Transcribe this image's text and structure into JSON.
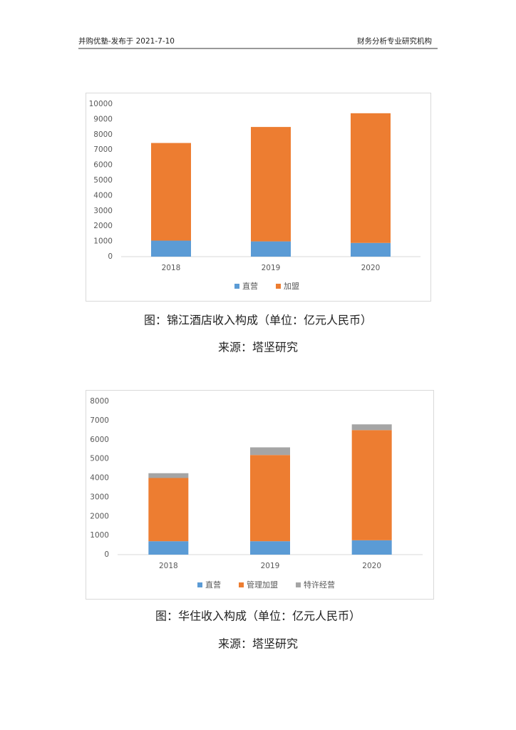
{
  "header": {
    "left": "并购优塾-发布于 2021-7-10",
    "right": "财务分析专业研究机构"
  },
  "captions": [
    {
      "title": "图：锦江酒店收入构成（单位：亿元人民币）",
      "source": "来源：塔坚研究"
    },
    {
      "title": "图：华住收入构成（单位：亿元人民币）",
      "source": "来源：塔坚研究"
    }
  ],
  "chart_data": [
    {
      "type": "bar",
      "stacked": true,
      "categories": [
        "2018",
        "2019",
        "2020"
      ],
      "series": [
        {
          "name": "直营",
          "color": "#5b9bd5",
          "values": [
            1050,
            1000,
            900
          ]
        },
        {
          "name": "加盟",
          "color": "#ed7d31",
          "values": [
            6400,
            7500,
            8500
          ]
        }
      ],
      "ylim": [
        0,
        10000
      ],
      "yticks": [
        0,
        1000,
        2000,
        3000,
        4000,
        5000,
        6000,
        7000,
        8000,
        9000,
        10000
      ],
      "legend": "bottom"
    },
    {
      "type": "bar",
      "stacked": true,
      "categories": [
        "2018",
        "2019",
        "2020"
      ],
      "series": [
        {
          "name": "直营",
          "color": "#5b9bd5",
          "values": [
            700,
            700,
            750
          ]
        },
        {
          "name": "管理加盟",
          "color": "#ed7d31",
          "values": [
            3300,
            4500,
            5750
          ]
        },
        {
          "name": "特许经营",
          "color": "#a5a5a5",
          "values": [
            250,
            400,
            300
          ]
        }
      ],
      "ylim": [
        0,
        8000
      ],
      "yticks": [
        0,
        1000,
        2000,
        3000,
        4000,
        5000,
        6000,
        7000,
        8000
      ],
      "legend": "bottom"
    }
  ]
}
